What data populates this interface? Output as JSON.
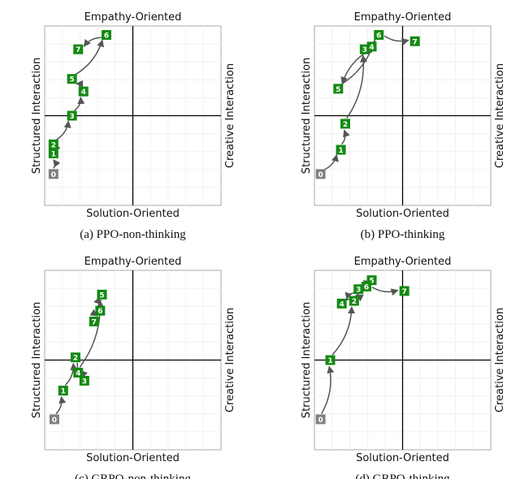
{
  "chart_data": [
    {
      "type": "line",
      "title": "(a) PPO-non-thinking",
      "top_label": "Empathy-Oriented",
      "bottom_label": "Solution-Oriented",
      "left_label": "Structured Interaction",
      "right_label": "Creative Interaction",
      "point_labels": [
        "0",
        "1",
        "2",
        "3",
        "4",
        "5",
        "6",
        "7"
      ],
      "x": [
        -0.9,
        -0.9,
        -0.9,
        -0.69,
        -0.56,
        -0.69,
        -0.3,
        -0.62
      ],
      "y": [
        -0.65,
        -0.42,
        -0.32,
        0.0,
        0.27,
        0.41,
        0.9,
        0.74
      ],
      "xlim": [
        -1,
        1
      ],
      "ylim": [
        -1,
        1
      ],
      "start_color": "#808080",
      "color": "#138a13"
    },
    {
      "type": "line",
      "title": "(b) PPO-thinking",
      "top_label": "Empathy-Oriented",
      "bottom_label": "Solution-Oriented",
      "left_label": "Structured Interaction",
      "right_label": "Creative Interaction",
      "point_labels": [
        "0",
        "1",
        "2",
        "3",
        "4",
        "5",
        "6",
        "7"
      ],
      "x": [
        -0.93,
        -0.7,
        -0.65,
        -0.43,
        -0.35,
        -0.73,
        -0.27,
        0.14
      ],
      "y": [
        -0.65,
        -0.38,
        -0.09,
        0.74,
        0.77,
        0.3,
        0.9,
        0.83
      ],
      "xlim": [
        -1,
        1
      ],
      "ylim": [
        -1,
        1
      ],
      "start_color": "#808080",
      "color": "#138a13"
    },
    {
      "type": "line",
      "title": "(c) GRPO-non-thinking",
      "top_label": "Empathy-Oriented",
      "bottom_label": "Solution-Oriented",
      "left_label": "Structured Interaction",
      "right_label": "Creative Interaction",
      "point_labels": [
        "0",
        "1",
        "2",
        "3",
        "4",
        "5",
        "6",
        "7"
      ],
      "x": [
        -0.89,
        -0.79,
        -0.65,
        -0.55,
        -0.62,
        -0.35,
        -0.37,
        -0.44
      ],
      "y": [
        -0.66,
        -0.34,
        0.03,
        -0.23,
        -0.14,
        0.73,
        0.55,
        0.43
      ],
      "xlim": [
        -1,
        1
      ],
      "ylim": [
        -1,
        1
      ],
      "start_color": "#808080",
      "color": "#138a13"
    },
    {
      "type": "line",
      "title": "(d) GRPO-thinking",
      "top_label": "Empathy-Oriented",
      "bottom_label": "Solution-Oriented",
      "left_label": "Structured Interaction",
      "right_label": "Creative Interaction",
      "point_labels": [
        "0",
        "1",
        "2",
        "3",
        "4",
        "5",
        "6",
        "7"
      ],
      "x": [
        -0.93,
        -0.82,
        -0.55,
        -0.5,
        -0.69,
        -0.35,
        -0.41,
        0.02
      ],
      "y": [
        -0.66,
        0.0,
        0.66,
        0.79,
        0.63,
        0.89,
        0.82,
        0.77
      ],
      "xlim": [
        -1,
        1
      ],
      "ylim": [
        -1,
        1
      ],
      "start_color": "#808080",
      "color": "#138a13"
    }
  ]
}
